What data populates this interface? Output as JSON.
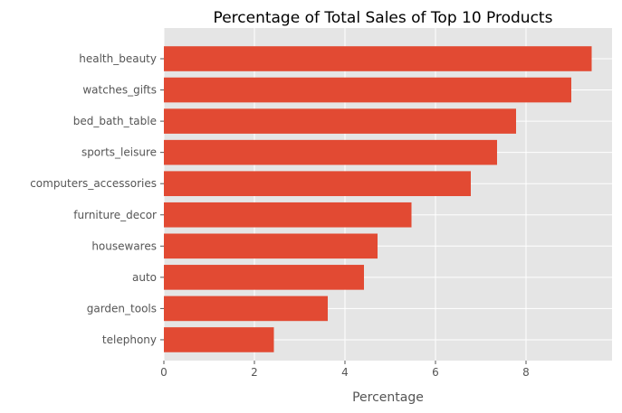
{
  "chart_data": {
    "type": "bar",
    "orientation": "horizontal",
    "title": "Percentage of Total Sales of Top 10 Products",
    "xlabel": "Percentage",
    "ylabel": "",
    "xlim": [
      0,
      9.9
    ],
    "xticks": [
      0,
      2,
      4,
      6,
      8
    ],
    "grid": true,
    "bar_color": "#E24A33",
    "background_color": "#E5E5E5",
    "categories": [
      "health_beauty",
      "watches_gifts",
      "bed_bath_table",
      "sports_leisure",
      "computers_accessories",
      "furniture_decor",
      "housewares",
      "auto",
      "garden_tools",
      "telephony"
    ],
    "values": [
      9.45,
      9.0,
      7.78,
      7.36,
      6.78,
      5.47,
      4.72,
      4.42,
      3.62,
      2.43
    ]
  }
}
